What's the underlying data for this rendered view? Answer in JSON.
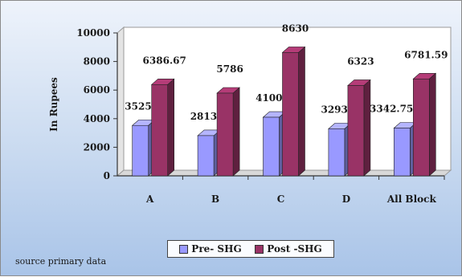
{
  "chart_data": {
    "type": "bar",
    "categories": [
      "A",
      "B",
      "C",
      "D",
      "All Block"
    ],
    "series": [
      {
        "name": "Pre- SHG",
        "values": [
          3525,
          2813,
          4100,
          3293,
          3342.75
        ],
        "labels": [
          "3525",
          "2813",
          "4100",
          "3293",
          "3342.75"
        ],
        "color": "#9999ff"
      },
      {
        "name": "Post -SHG",
        "values": [
          6386.67,
          5786,
          8630,
          6323,
          6781.59
        ],
        "labels": [
          "6386.67",
          "5786",
          "8630",
          "6323",
          "6781.59"
        ],
        "color": "#993366"
      }
    ],
    "ylabel": "In Rupees",
    "xlabel": "",
    "ylim": [
      0,
      10000
    ],
    "yticks": [
      0,
      2000,
      4000,
      6000,
      8000,
      10000
    ],
    "grid": false,
    "legend_position": "bottom",
    "bar_style": "3d"
  },
  "footer": {
    "source": "source primary data"
  }
}
